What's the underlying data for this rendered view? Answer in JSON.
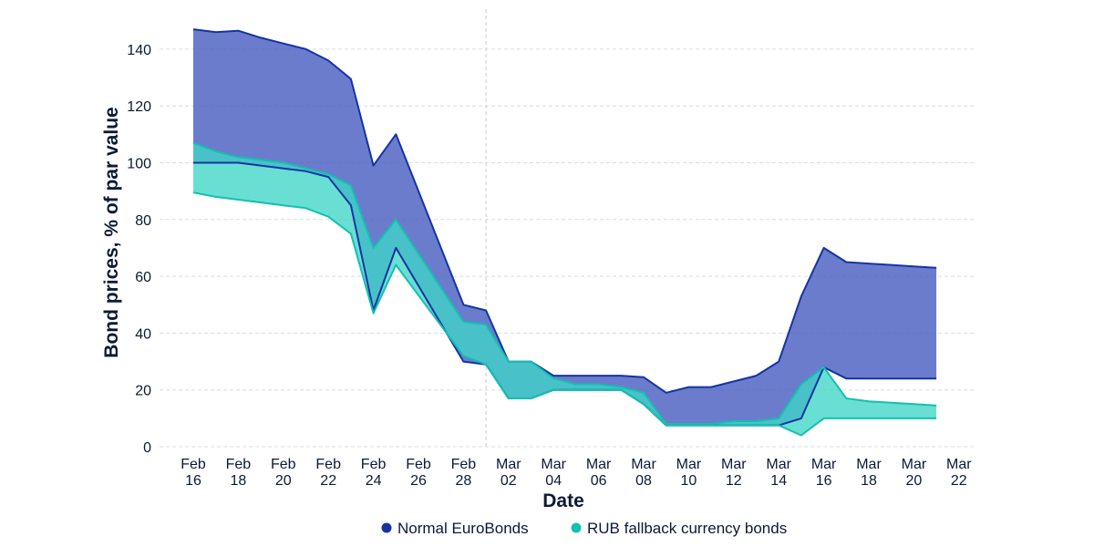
{
  "chart_data": {
    "type": "area",
    "title": "",
    "xlabel": "Date",
    "ylabel": "Bond prices, % of par value",
    "ylim": [
      0,
      150
    ],
    "yticks": [
      0,
      20,
      40,
      60,
      80,
      100,
      120,
      140
    ],
    "x_range_days": [
      0,
      36
    ],
    "x_ticks": [
      {
        "day": 0,
        "line1": "Feb",
        "line2": "16"
      },
      {
        "day": 2,
        "line1": "Feb",
        "line2": "18"
      },
      {
        "day": 4,
        "line1": "Feb",
        "line2": "20"
      },
      {
        "day": 6,
        "line1": "Feb",
        "line2": "22"
      },
      {
        "day": 8,
        "line1": "Feb",
        "line2": "24"
      },
      {
        "day": 10,
        "line1": "Feb",
        "line2": "26"
      },
      {
        "day": 12,
        "line1": "Feb",
        "line2": "28"
      },
      {
        "day": 14,
        "line1": "Mar",
        "line2": "02"
      },
      {
        "day": 16,
        "line1": "Mar",
        "line2": "04"
      },
      {
        "day": 18,
        "line1": "Mar",
        "line2": "06"
      },
      {
        "day": 20,
        "line1": "Mar",
        "line2": "08"
      },
      {
        "day": 22,
        "line1": "Mar",
        "line2": "10"
      },
      {
        "day": 24,
        "line1": "Mar",
        "line2": "12"
      },
      {
        "day": 26,
        "line1": "Mar",
        "line2": "14"
      },
      {
        "day": 28,
        "line1": "Mar",
        "line2": "16"
      },
      {
        "day": 30,
        "line1": "Mar",
        "line2": "18"
      },
      {
        "day": 32,
        "line1": "Mar",
        "line2": "20"
      },
      {
        "day": 34,
        "line1": "Mar",
        "line2": "22"
      }
    ],
    "reference_line_day": 13.0,
    "grid": true,
    "legend_position": "bottom-center",
    "series": [
      {
        "name": "Normal EuroBonds",
        "color": "#1434a4",
        "fill": "#4a5fc1",
        "fill_opacity": 0.82,
        "x": [
          0,
          1,
          2,
          3,
          4,
          5,
          6,
          7,
          8,
          9,
          12,
          13,
          14,
          15,
          16,
          17,
          18,
          19,
          20,
          21,
          22,
          23,
          24,
          25,
          26,
          27,
          28,
          29,
          30,
          31,
          32,
          33
        ],
        "upper": [
          147,
          146,
          146.5,
          144,
          142,
          140,
          136,
          129.5,
          99,
          110,
          50,
          48,
          30,
          30,
          25,
          25,
          25,
          25,
          24.5,
          19,
          21,
          21,
          23,
          25,
          30,
          53,
          70,
          65,
          64.5,
          64,
          63.5,
          63
        ],
        "lower": [
          100,
          100,
          100,
          99,
          98,
          97,
          95,
          85,
          48,
          70,
          30,
          29,
          17,
          17,
          20,
          20,
          20,
          20,
          15,
          7.5,
          7.5,
          7.5,
          7.5,
          7.5,
          7.5,
          10,
          28,
          24,
          24,
          24,
          24,
          24
        ]
      },
      {
        "name": "RUB fallback currency bonds",
        "color": "#13c0b0",
        "fill": "#3fd6c6",
        "fill_opacity": 0.78,
        "x": [
          0,
          1,
          2,
          3,
          4,
          5,
          6,
          7,
          8,
          9,
          12,
          13,
          14,
          15,
          16,
          17,
          18,
          19,
          20,
          21,
          22,
          23,
          24,
          25,
          26,
          27,
          28,
          29,
          30,
          31,
          32,
          33
        ],
        "upper": [
          107,
          104,
          102,
          101,
          100,
          98,
          96,
          92,
          70,
          80,
          44,
          43,
          30,
          30,
          24,
          22,
          22,
          21,
          19,
          8,
          8,
          8,
          9,
          9,
          10,
          22,
          28,
          17,
          16,
          15.5,
          15,
          14.5
        ],
        "lower": [
          89.5,
          88,
          87,
          86,
          85,
          84,
          81,
          75,
          47,
          64,
          32,
          29,
          17,
          17,
          20,
          20,
          20,
          20,
          15,
          7.5,
          7.5,
          7.5,
          7.5,
          7.5,
          7.5,
          4,
          10,
          10,
          10,
          10,
          10,
          10
        ]
      }
    ]
  }
}
